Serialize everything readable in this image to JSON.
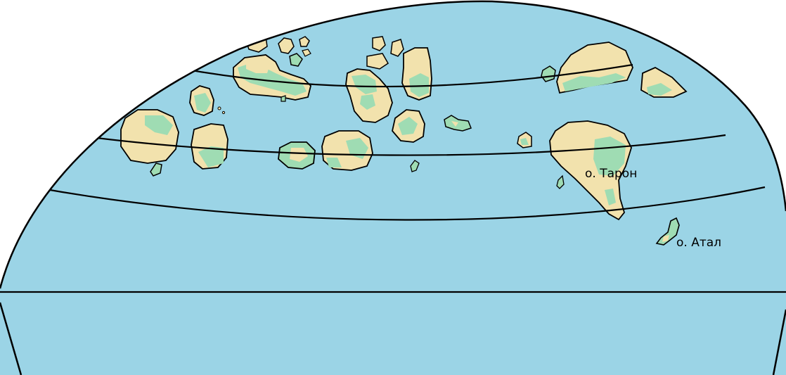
{
  "map": {
    "colors": {
      "ocean": "#9bd4e6",
      "land": "#f2e2ad",
      "lowland": "#9fdcb3",
      "border": "#000000",
      "background": "#ffffff"
    },
    "labels": {
      "taron": "о. Тарон",
      "atal": "о. Атал"
    }
  }
}
